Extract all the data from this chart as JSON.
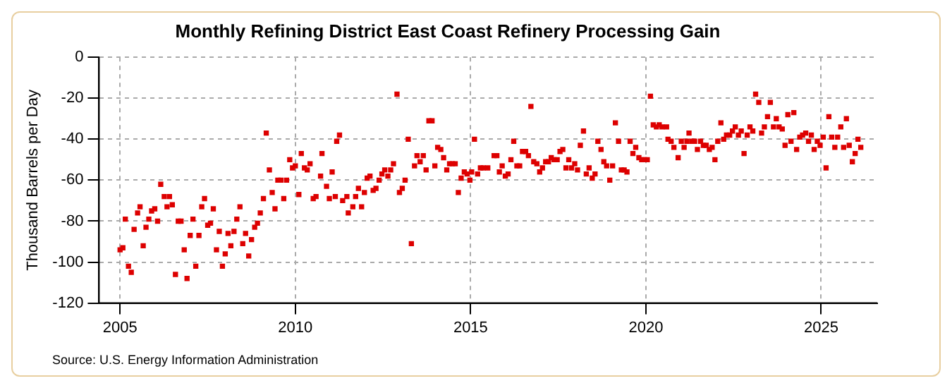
{
  "chart_data": {
    "type": "scatter",
    "title": "Monthly Refining District East Coast Refinery Processing Gain",
    "ylabel": "Thousand Barrels per Day",
    "annotations": [
      "Source: U.S. Energy Information Administration"
    ],
    "x": [
      2005.0,
      2005.08,
      2005.15,
      2005.24,
      2005.32,
      2005.4,
      2005.5,
      2005.57,
      2005.66,
      2005.74,
      2005.82,
      2005.9,
      2005.99,
      2006.07,
      2006.16,
      2006.26,
      2006.34,
      2006.41,
      2006.49,
      2006.58,
      2006.66,
      2006.74,
      2006.83,
      2006.91,
      2007.0,
      2007.08,
      2007.16,
      2007.25,
      2007.33,
      2007.41,
      2007.5,
      2007.58,
      2007.66,
      2007.75,
      2007.83,
      2007.92,
      2008.0,
      2008.08,
      2008.16,
      2008.25,
      2008.33,
      2008.42,
      2008.5,
      2008.58,
      2008.67,
      2008.75,
      2008.84,
      2008.92,
      2009.0,
      2009.09,
      2009.17,
      2009.26,
      2009.34,
      2009.42,
      2009.5,
      2009.59,
      2009.67,
      2009.75,
      2009.84,
      2009.92,
      2010.0,
      2010.1,
      2010.17,
      2010.26,
      2010.34,
      2010.42,
      2010.51,
      2010.59,
      2010.72,
      2010.76,
      2010.89,
      2010.97,
      2011.05,
      2011.14,
      2011.18,
      2011.26,
      2011.35,
      2011.47,
      2011.51,
      2011.64,
      2011.72,
      2011.8,
      2011.89,
      2011.97,
      2012.05,
      2012.13,
      2012.22,
      2012.3,
      2012.39,
      2012.47,
      2012.55,
      2012.64,
      2012.72,
      2012.8,
      2012.9,
      2012.97,
      2013.05,
      2013.13,
      2013.22,
      2013.31,
      2013.4,
      2013.47,
      2013.56,
      2013.65,
      2013.73,
      2013.81,
      2013.9,
      2013.98,
      2014.06,
      2014.15,
      2014.23,
      2014.32,
      2014.4,
      2014.48,
      2014.56,
      2014.65,
      2014.73,
      2014.82,
      2014.9,
      2014.98,
      2015.03,
      2015.11,
      2015.2,
      2015.28,
      2015.36,
      2015.49,
      2015.67,
      2015.75,
      2015.82,
      2015.9,
      2015.99,
      2016.07,
      2016.15,
      2016.23,
      2016.32,
      2016.4,
      2016.48,
      2016.57,
      2016.65,
      2016.72,
      2016.8,
      2016.89,
      2016.97,
      2017.05,
      2017.14,
      2017.22,
      2017.3,
      2017.38,
      2017.47,
      2017.55,
      2017.63,
      2017.72,
      2017.8,
      2017.88,
      2017.97,
      2018.05,
      2018.13,
      2018.22,
      2018.3,
      2018.38,
      2018.47,
      2018.55,
      2018.63,
      2018.72,
      2018.8,
      2018.88,
      2018.97,
      2019.05,
      2019.13,
      2019.22,
      2019.3,
      2019.38,
      2019.46,
      2019.55,
      2019.63,
      2019.71,
      2019.8,
      2019.88,
      2019.96,
      2020.04,
      2020.13,
      2020.21,
      2020.3,
      2020.38,
      2020.46,
      2020.59,
      2020.63,
      2020.72,
      2020.8,
      2020.92,
      2021.01,
      2021.09,
      2021.17,
      2021.23,
      2021.31,
      2021.39,
      2021.47,
      2021.56,
      2021.64,
      2021.72,
      2021.81,
      2021.89,
      2021.97,
      2022.05,
      2022.14,
      2022.22,
      2022.3,
      2022.39,
      2022.47,
      2022.55,
      2022.64,
      2022.72,
      2022.8,
      2022.89,
      2022.97,
      2023.05,
      2023.13,
      2023.22,
      2023.3,
      2023.38,
      2023.47,
      2023.55,
      2023.64,
      2023.72,
      2023.8,
      2023.89,
      2023.97,
      2024.05,
      2024.14,
      2024.22,
      2024.3,
      2024.39,
      2024.47,
      2024.56,
      2024.64,
      2024.72,
      2024.8,
      2024.89,
      2024.97,
      2025.06,
      2025.14,
      2025.22,
      2025.3,
      2025.39,
      2025.47,
      2025.56,
      2025.64,
      2025.72,
      2025.8,
      2025.89,
      2025.97,
      2026.05,
      2026.13
    ],
    "series": [
      {
        "color": "#dd0000",
        "values": [
          -94,
          -93,
          -79,
          -102,
          -105,
          -84,
          -76,
          -73,
          -92,
          -83,
          -79,
          -75,
          -74,
          -80,
          -62,
          -68,
          -73,
          -68,
          -72,
          -106,
          -80,
          -80,
          -94,
          -108,
          -87,
          -79,
          -102,
          -87,
          -73,
          -69,
          -82,
          -81,
          -74,
          -94,
          -85,
          -102,
          -96,
          -86,
          -92,
          -85,
          -79,
          -73,
          -91,
          -86,
          -97,
          -89,
          -83,
          -81,
          -76,
          -69,
          -37,
          -55,
          -66,
          -74,
          -60,
          -60,
          -69,
          -60,
          -50,
          -54,
          -53,
          -67,
          -47,
          -54,
          -55,
          -52,
          -69,
          -68,
          -58,
          -47,
          -63,
          -69,
          -56,
          -68,
          -41,
          -38,
          -70,
          -68,
          -76,
          -73,
          -68,
          -64,
          -73,
          -66,
          -59,
          -58,
          -65,
          -64,
          -60,
          -57,
          -55,
          -58,
          -55,
          -52,
          -18,
          -66,
          -64,
          -60,
          -40,
          -91,
          -53,
          -48,
          -51,
          -48,
          -55,
          -31,
          -31,
          -53,
          -44,
          -45,
          -49,
          -55,
          -52,
          -52,
          -52,
          -66,
          -59,
          -56,
          -57,
          -60,
          -56,
          -40,
          -57,
          -54,
          -54,
          -54,
          -48,
          -48,
          -56,
          -53,
          -58,
          -57,
          -50,
          -41,
          -53,
          -53,
          -46,
          -46,
          -48,
          -24,
          -51,
          -52,
          -56,
          -54,
          -51,
          -51,
          -49,
          -50,
          -50,
          -46,
          -45,
          -54,
          -50,
          -54,
          -52,
          -55,
          -43,
          -36,
          -57,
          -54,
          -59,
          -57,
          -41,
          -45,
          -51,
          -53,
          -60,
          -53,
          -32,
          -41,
          -55,
          -55,
          -56,
          -41,
          -47,
          -44,
          -49,
          -50,
          -50,
          -50,
          -19,
          -33,
          -34,
          -33,
          -34,
          -34,
          -40,
          -41,
          -44,
          -49,
          -41,
          -44,
          -41,
          -37,
          -41,
          -41,
          -45,
          -41,
          -43,
          -43,
          -45,
          -44,
          -50,
          -41,
          -32,
          -40,
          -38,
          -38,
          -36,
          -34,
          -38,
          -36,
          -47,
          -38,
          -34,
          -36,
          -18,
          -22,
          -37,
          -34,
          -29,
          -22,
          -34,
          -30,
          -34,
          -35,
          -43,
          -28,
          -41,
          -27,
          -45,
          -39,
          -38,
          -37,
          -41,
          -38,
          -45,
          -41,
          -43,
          -39,
          -54,
          -29,
          -39,
          -44,
          -39,
          -34,
          -44,
          -30,
          -43,
          -51,
          -47,
          -40,
          -44
        ]
      }
    ],
    "xlim": [
      2004.4,
      2026.6
    ],
    "xticks": [
      2005,
      2010,
      2015,
      2020,
      2025
    ],
    "ylim": [
      -120,
      0
    ],
    "yticks": [
      -120,
      -100,
      -80,
      -60,
      -40,
      -20,
      0
    ],
    "grid": true,
    "marker": "square"
  }
}
